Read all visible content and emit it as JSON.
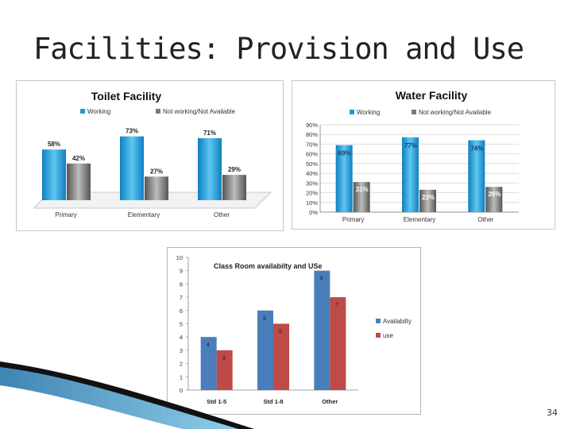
{
  "slide": {
    "title": "Facilities: Provision and Use",
    "page_number": "34"
  },
  "chart_data": [
    {
      "type": "bar",
      "title": "Toilet Facility",
      "categories": [
        "Primary",
        "Elementary",
        "Other"
      ],
      "series": [
        {
          "name": "Working",
          "values": [
            58,
            73,
            71
          ],
          "labels": [
            "58%",
            "73%",
            "71%"
          ],
          "color": "#1f9ad6"
        },
        {
          "name": "Not working/Not Available",
          "values": [
            42,
            27,
            29
          ],
          "labels": [
            "42%",
            "27%",
            "29%"
          ],
          "color": "#7a7a7a"
        }
      ],
      "ylim": [
        0,
        100
      ],
      "legend": "top",
      "style": "3d"
    },
    {
      "type": "bar",
      "title": "Water Facility",
      "categories": [
        "Primary",
        "Elementary",
        "Other"
      ],
      "series": [
        {
          "name": "Working",
          "values": [
            69,
            77,
            74
          ],
          "labels": [
            "69%",
            "77%",
            "74%"
          ],
          "color": "#1f9ad6"
        },
        {
          "name": "Not working/Not Available",
          "values": [
            31,
            23,
            26
          ],
          "labels": [
            "31%",
            "23%",
            "26%"
          ],
          "color": "#7a7a7a"
        }
      ],
      "yticks": [
        "0%",
        "10%",
        "20%",
        "30%",
        "40%",
        "50%",
        "60%",
        "70%",
        "80%",
        "90%"
      ],
      "ylim": [
        0,
        90
      ],
      "grid": true,
      "legend": "top"
    },
    {
      "type": "bar",
      "title": "Class Room availabilty and USe",
      "categories": [
        "Std 1-5",
        "Std 1-8",
        "Other"
      ],
      "series": [
        {
          "name": "Availabilty",
          "values": [
            4,
            6,
            9
          ],
          "color": "#4a7ebb"
        },
        {
          "name": "use",
          "values": [
            3,
            5,
            7
          ],
          "color": "#be4b48"
        }
      ],
      "yticks": [
        "0",
        "1",
        "2",
        "3",
        "4",
        "5",
        "6",
        "7",
        "8",
        "9",
        "10"
      ],
      "ylim": [
        0,
        10
      ],
      "legend": "right"
    }
  ]
}
